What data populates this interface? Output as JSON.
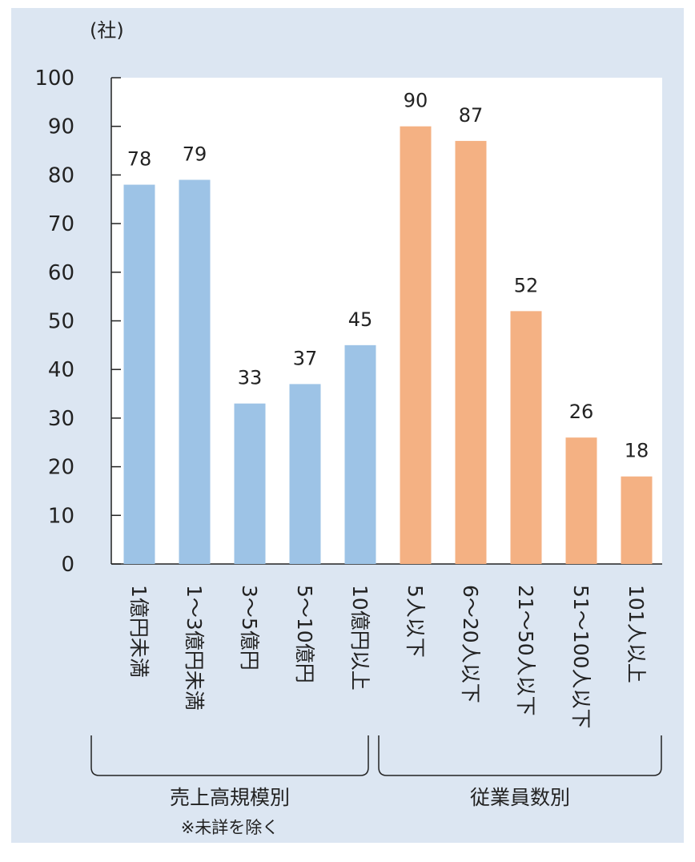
{
  "chart_data": {
    "type": "bar",
    "unit_label": "(社)",
    "ylim": [
      0,
      100
    ],
    "yticks": [
      0,
      10,
      20,
      30,
      40,
      50,
      60,
      70,
      80,
      90,
      100
    ],
    "grid": false,
    "groups": [
      {
        "name": "売上高規模別",
        "note": "※未詳を除く",
        "color": "#9dc3e6",
        "categories": [
          "1億円未満",
          "1～3億円未満",
          "3～5億円",
          "5～10億円",
          "10億円以上"
        ],
        "values": [
          78,
          79,
          33,
          37,
          45
        ]
      },
      {
        "name": "従業員数別",
        "note": "",
        "color": "#f4b183",
        "categories": [
          "5人以下",
          "6～20人以下",
          "21～50人以下",
          "51～100人以下",
          "101人以上"
        ],
        "values": [
          90,
          87,
          52,
          26,
          18
        ]
      }
    ],
    "colors": {
      "panel_background": "#dce6f2",
      "plot_background": "#ffffff",
      "axis": "#222222"
    }
  }
}
